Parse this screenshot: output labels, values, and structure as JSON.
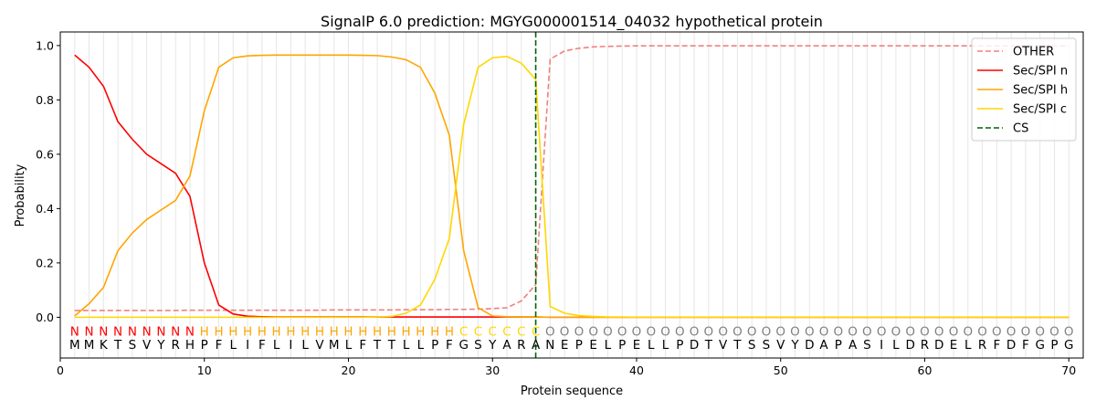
{
  "chart_data": {
    "type": "line",
    "title": "SignalP 6.0 prediction: MGYG000001514_04032 hypothetical protein",
    "xlabel": "Protein sequence",
    "ylabel": "Probability",
    "xlim": [
      0,
      71
    ],
    "ylim": [
      -0.15,
      1.05
    ],
    "x_ticks": [
      0,
      10,
      20,
      30,
      40,
      50,
      60,
      70
    ],
    "y_ticks": [
      0.0,
      0.2,
      0.4,
      0.6,
      0.8,
      1.0
    ],
    "x_tick_labels": [
      "0",
      "10",
      "20",
      "30",
      "40",
      "50",
      "60",
      "70"
    ],
    "y_tick_labels": [
      "0.0",
      "0.2",
      "0.4",
      "0.6",
      "0.8",
      "1.0"
    ],
    "grid": "vertical lines at each residue",
    "legend_position": "top-right",
    "sequence": [
      "M",
      "M",
      "K",
      "T",
      "S",
      "V",
      "Y",
      "R",
      "H",
      "P",
      "F",
      "L",
      "I",
      "F",
      "L",
      "I",
      "L",
      "V",
      "M",
      "L",
      "F",
      "T",
      "T",
      "L",
      "L",
      "P",
      "F",
      "G",
      "S",
      "Y",
      "A",
      "R",
      "A",
      "N",
      "E",
      "P",
      "E",
      "L",
      "P",
      "E",
      "L",
      "L",
      "P",
      "D",
      "T",
      "V",
      "T",
      "S",
      "S",
      "V",
      "Y",
      "D",
      "A",
      "P",
      "A",
      "S",
      "I",
      "L",
      "D",
      "R",
      "D",
      "E",
      "L",
      "R",
      "F",
      "D",
      "F",
      "G",
      "P",
      "G"
    ],
    "labels": [
      "N",
      "N",
      "N",
      "N",
      "N",
      "N",
      "N",
      "N",
      "N",
      "H",
      "H",
      "H",
      "H",
      "H",
      "H",
      "H",
      "H",
      "H",
      "H",
      "H",
      "H",
      "H",
      "H",
      "H",
      "H",
      "H",
      "H",
      "C",
      "C",
      "C",
      "C",
      "C",
      "C",
      "O",
      "O",
      "O",
      "O",
      "O",
      "O",
      "O",
      "O",
      "O",
      "O",
      "O",
      "O",
      "O",
      "O",
      "O",
      "O",
      "O",
      "O",
      "O",
      "O",
      "O",
      "O",
      "O",
      "O",
      "O",
      "O",
      "O",
      "O",
      "O",
      "O",
      "O",
      "O",
      "O",
      "O",
      "O",
      "O",
      "O"
    ],
    "label_colors": {
      "N": "#ff0000",
      "H": "#ffa500",
      "C": "#ffd700",
      "O": "#808080"
    },
    "cleavage_site": 33,
    "series": [
      {
        "name": "OTHER",
        "color": "#f08080",
        "dash": "dashed",
        "values": [
          0.025,
          0.025,
          0.025,
          0.025,
          0.025,
          0.025,
          0.025,
          0.025,
          0.026,
          0.026,
          0.026,
          0.026,
          0.026,
          0.026,
          0.026,
          0.026,
          0.026,
          0.026,
          0.027,
          0.027,
          0.027,
          0.027,
          0.027,
          0.028,
          0.028,
          0.028,
          0.029,
          0.029,
          0.03,
          0.032,
          0.035,
          0.06,
          0.12,
          0.95,
          0.98,
          0.99,
          0.995,
          0.997,
          0.998,
          0.999,
          0.999,
          0.999,
          0.999,
          0.999,
          0.999,
          0.999,
          0.999,
          0.999,
          0.999,
          0.999,
          0.999,
          0.999,
          0.999,
          0.999,
          0.999,
          0.999,
          0.999,
          0.999,
          0.999,
          0.999,
          0.999,
          0.999,
          0.999,
          0.999,
          0.999,
          0.999,
          0.999,
          0.999,
          0.999,
          0.999
        ]
      },
      {
        "name": "Sec/SPI n",
        "color": "#ff0000",
        "dash": "solid",
        "values": [
          0.965,
          0.92,
          0.85,
          0.72,
          0.655,
          0.6,
          0.565,
          0.53,
          0.445,
          0.2,
          0.045,
          0.012,
          0.004,
          0.002,
          0.001,
          0.001,
          0.001,
          0.001,
          0.001,
          0.001,
          0.001,
          0.001,
          0.001,
          0.001,
          0.001,
          0.001,
          0.001,
          0.001,
          0.001,
          0.001,
          0.001,
          0.001,
          0.001,
          0.0,
          0.0,
          0.0,
          0.0,
          0.0,
          0.0,
          0.0,
          0.0,
          0.0,
          0.0,
          0.0,
          0.0,
          0.0,
          0.0,
          0.0,
          0.0,
          0.0,
          0.0,
          0.0,
          0.0,
          0.0,
          0.0,
          0.0,
          0.0,
          0.0,
          0.0,
          0.0,
          0.0,
          0.0,
          0.0,
          0.0,
          0.0,
          0.0,
          0.0,
          0.0,
          0.0,
          0.0
        ]
      },
      {
        "name": "Sec/SPI h",
        "color": "#ffa500",
        "dash": "solid",
        "values": [
          0.005,
          0.05,
          0.11,
          0.245,
          0.31,
          0.36,
          0.395,
          0.43,
          0.52,
          0.76,
          0.92,
          0.955,
          0.962,
          0.964,
          0.965,
          0.965,
          0.965,
          0.965,
          0.965,
          0.965,
          0.964,
          0.963,
          0.958,
          0.948,
          0.92,
          0.825,
          0.67,
          0.245,
          0.035,
          0.005,
          0.002,
          0.001,
          0.001,
          0.0,
          0.0,
          0.0,
          0.0,
          0.0,
          0.0,
          0.0,
          0.0,
          0.0,
          0.0,
          0.0,
          0.0,
          0.0,
          0.0,
          0.0,
          0.0,
          0.0,
          0.0,
          0.0,
          0.0,
          0.0,
          0.0,
          0.0,
          0.0,
          0.0,
          0.0,
          0.0,
          0.0,
          0.0,
          0.0,
          0.0,
          0.0,
          0.0,
          0.0,
          0.0,
          0.0,
          0.0
        ]
      },
      {
        "name": "Sec/SPI c",
        "color": "#ffd700",
        "dash": "solid",
        "values": [
          0.0,
          0.0,
          0.0,
          0.0,
          0.0,
          0.0,
          0.0,
          0.0,
          0.0,
          0.0,
          0.0,
          0.0,
          0.0,
          0.0,
          0.0,
          0.0,
          0.0,
          0.0,
          0.0,
          0.0,
          0.0,
          0.001,
          0.003,
          0.015,
          0.045,
          0.14,
          0.29,
          0.71,
          0.92,
          0.955,
          0.96,
          0.935,
          0.875,
          0.04,
          0.015,
          0.006,
          0.003,
          0.001,
          0.001,
          0.0,
          0.0,
          0.0,
          0.0,
          0.0,
          0.0,
          0.0,
          0.0,
          0.0,
          0.0,
          0.0,
          0.0,
          0.0,
          0.0,
          0.0,
          0.0,
          0.0,
          0.0,
          0.0,
          0.0,
          0.0,
          0.0,
          0.0,
          0.0,
          0.0,
          0.0,
          0.0,
          0.0,
          0.0,
          0.0,
          0.0
        ]
      }
    ],
    "legend": [
      {
        "label": "OTHER",
        "color": "#f08080",
        "dash": "dashed"
      },
      {
        "label": "Sec/SPI n",
        "color": "#ff0000",
        "dash": "solid"
      },
      {
        "label": "Sec/SPI h",
        "color": "#ffa500",
        "dash": "solid"
      },
      {
        "label": "Sec/SPI c",
        "color": "#ffd700",
        "dash": "solid"
      },
      {
        "label": "CS",
        "color": "#006400",
        "dash": "dashed"
      }
    ]
  }
}
